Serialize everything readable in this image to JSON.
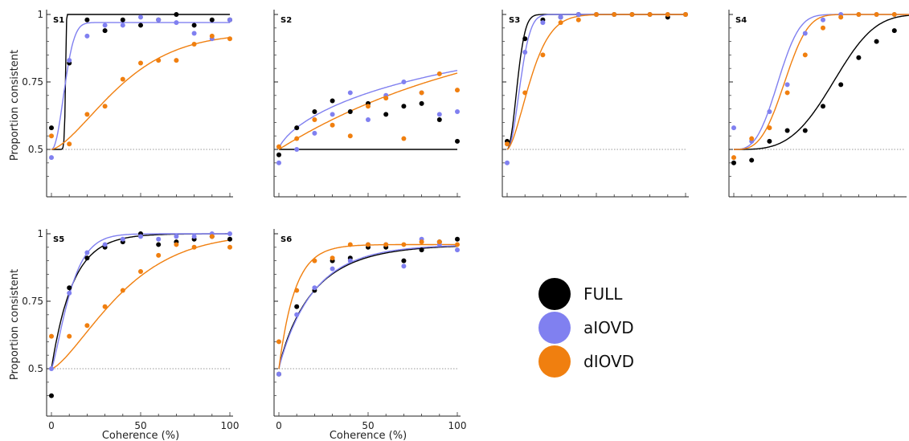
{
  "figure": {
    "ylabel": "Proportion consistent",
    "xlabel": "Coherence (%)",
    "legend": [
      {
        "label": "FULL",
        "color": "#000000"
      },
      {
        "label": "aIOVD",
        "color": "#8080f0"
      },
      {
        "label": "dIOVD",
        "color": "#f07f0f"
      }
    ]
  },
  "chart_data": [
    {
      "type": "scatter",
      "title": "S1",
      "x": [
        0,
        10,
        20,
        30,
        40,
        50,
        60,
        70,
        80,
        90,
        100
      ],
      "xlim": [
        0,
        100
      ],
      "ylim": [
        0.35,
        1
      ],
      "yticks": [
        0.5,
        0.75,
        1
      ],
      "yticklabels": [
        "0.5",
        "0.75",
        "1"
      ],
      "xticks": [
        0,
        50,
        100
      ],
      "series": [
        {
          "name": "FULL",
          "color": "#000000",
          "values": [
            0.58,
            0.82,
            0.98,
            0.94,
            0.98,
            0.96,
            0.98,
            1.0,
            0.96,
            0.98,
            0.98
          ],
          "fit": {
            "type": "weibull",
            "alpha": 8,
            "beta": 20
          }
        },
        {
          "name": "aIOVD",
          "color": "#8080f0",
          "values": [
            0.47,
            0.83,
            0.92,
            0.96,
            0.96,
            0.99,
            0.98,
            0.97,
            0.93,
            0.91,
            0.98
          ],
          "fit": {
            "type": "weibull",
            "alpha": 9,
            "beta": 2.1,
            "ymax": 0.97
          }
        },
        {
          "name": "dIOVD",
          "color": "#f07f0f",
          "values": [
            0.55,
            0.52,
            0.63,
            0.66,
            0.76,
            0.82,
            0.83,
            0.83,
            0.89,
            0.92,
            0.91
          ],
          "fit": {
            "type": "weibull",
            "alpha": 45,
            "beta": 1.5,
            "ymax": 0.93
          }
        }
      ]
    },
    {
      "type": "scatter",
      "title": "S2",
      "x": [
        0,
        10,
        20,
        30,
        40,
        50,
        60,
        70,
        80,
        90,
        100
      ],
      "xlim": [
        0,
        100
      ],
      "ylim": [
        0.35,
        1
      ],
      "yticks": [
        0.5,
        0.75,
        1
      ],
      "yticklabels": [],
      "xticks": [
        0,
        50,
        100
      ],
      "series": [
        {
          "name": "FULL",
          "color": "#000000",
          "values": [
            0.48,
            0.58,
            0.64,
            0.68,
            0.64,
            0.67,
            0.63,
            0.66,
            0.67,
            0.61,
            0.53
          ],
          "fit": {
            "type": "flat",
            "y": 0.5
          }
        },
        {
          "name": "aIOVD",
          "color": "#8080f0",
          "values": [
            0.45,
            0.5,
            0.56,
            0.63,
            0.71,
            0.61,
            0.7,
            0.75,
            0.71,
            0.63,
            0.64
          ],
          "fit": {
            "type": "weibull",
            "alpha": 120,
            "beta": 0.7
          }
        },
        {
          "name": "dIOVD",
          "color": "#f07f0f",
          "values": [
            0.51,
            0.54,
            0.61,
            0.59,
            0.55,
            0.66,
            0.69,
            0.54,
            0.71,
            0.78,
            0.72
          ],
          "fit": {
            "type": "weibull",
            "alpha": 120,
            "beta": 1.0
          }
        }
      ]
    },
    {
      "type": "scatter",
      "title": "S3",
      "x": [
        0,
        10,
        20,
        30,
        40,
        50,
        60,
        70,
        80,
        90,
        100
      ],
      "xlim": [
        0,
        100
      ],
      "ylim": [
        0.35,
        1
      ],
      "yticks": [
        0.5,
        0.75,
        1
      ],
      "yticklabels": [],
      "xticks": [
        0,
        50,
        100
      ],
      "series": [
        {
          "name": "FULL",
          "color": "#000000",
          "values": [
            0.53,
            0.91,
            0.98,
            0.99,
            1.0,
            1.0,
            1.0,
            1.0,
            1.0,
            0.99,
            1.0
          ],
          "fit": {
            "type": "weibull",
            "alpha": 7,
            "beta": 2.0
          }
        },
        {
          "name": "aIOVD",
          "color": "#8080f0",
          "values": [
            0.45,
            0.86,
            0.97,
            0.99,
            1.0,
            1.0,
            1.0,
            1.0,
            1.0,
            1.0,
            1.0
          ],
          "fit": {
            "type": "weibull",
            "alpha": 9,
            "beta": 2.0
          }
        },
        {
          "name": "dIOVD",
          "color": "#f07f0f",
          "values": [
            0.52,
            0.71,
            0.85,
            0.97,
            0.98,
            1.0,
            1.0,
            1.0,
            1.0,
            1.0,
            1.0
          ],
          "fit": {
            "type": "weibull",
            "alpha": 16,
            "beta": 1.6
          }
        }
      ]
    },
    {
      "type": "scatter",
      "title": "S4",
      "x": [
        0,
        10,
        20,
        30,
        40,
        50,
        60,
        70,
        80,
        90,
        100
      ],
      "xlim": [
        0,
        100
      ],
      "ylim": [
        0.35,
        1
      ],
      "yticks": [
        0.5,
        0.75,
        1
      ],
      "yticklabels": [],
      "xticks": [
        0,
        50,
        100
      ],
      "series": [
        {
          "name": "FULL",
          "color": "#000000",
          "values": [
            0.45,
            0.46,
            0.53,
            0.57,
            0.57,
            0.66,
            0.74,
            0.84,
            0.9,
            0.94,
            0.99
          ],
          "fit": {
            "type": "weibull",
            "alpha": 62,
            "beta": 3.5
          }
        },
        {
          "name": "aIOVD",
          "color": "#8080f0",
          "values": [
            0.58,
            0.53,
            0.64,
            0.74,
            0.93,
            0.98,
            1.0,
            1.0,
            1.0,
            1.0,
            1.0
          ],
          "fit": {
            "type": "weibull",
            "alpha": 28,
            "beta": 3.0
          }
        },
        {
          "name": "dIOVD",
          "color": "#f07f0f",
          "values": [
            0.47,
            0.54,
            0.58,
            0.71,
            0.85,
            0.95,
            0.99,
            1.0,
            1.0,
            1.0,
            1.0
          ],
          "fit": {
            "type": "weibull",
            "alpha": 32,
            "beta": 3.2
          }
        }
      ]
    },
    {
      "type": "scatter",
      "title": "S5",
      "x": [
        0,
        10,
        20,
        30,
        40,
        50,
        60,
        70,
        80,
        90,
        100
      ],
      "xlim": [
        0,
        100
      ],
      "ylim": [
        0.35,
        1
      ],
      "yticks": [
        0.5,
        0.75,
        1
      ],
      "yticklabels": [
        "0.5",
        "0.75",
        "1"
      ],
      "xticks": [
        0,
        50,
        100
      ],
      "xticklabels": [
        "0",
        "50",
        "100"
      ],
      "series": [
        {
          "name": "FULL",
          "color": "#000000",
          "values": [
            0.4,
            0.8,
            0.91,
            0.95,
            0.97,
            1.0,
            0.96,
            0.97,
            0.98,
            0.99,
            0.98
          ],
          "fit": {
            "type": "weibull",
            "alpha": 12,
            "beta": 1.0
          }
        },
        {
          "name": "aIOVD",
          "color": "#8080f0",
          "values": [
            0.5,
            0.78,
            0.93,
            0.96,
            0.98,
            0.99,
            0.98,
            0.99,
            0.99,
            1.0,
            1.0
          ],
          "fit": {
            "type": "weibull",
            "alpha": 12,
            "beta": 1.3
          }
        },
        {
          "name": "dIOVD",
          "color": "#f07f0f",
          "values": [
            0.62,
            0.62,
            0.66,
            0.73,
            0.79,
            0.86,
            0.92,
            0.96,
            0.95,
            0.99,
            0.95
          ],
          "fit": {
            "type": "weibull",
            "alpha": 45,
            "beta": 1.4
          }
        }
      ]
    },
    {
      "type": "scatter",
      "title": "S6",
      "x": [
        0,
        10,
        20,
        30,
        40,
        50,
        60,
        70,
        80,
        90,
        100
      ],
      "xlim": [
        0,
        100
      ],
      "ylim": [
        0.35,
        1
      ],
      "yticks": [
        0.5,
        0.75,
        1
      ],
      "yticklabels": [],
      "xticks": [
        0,
        50,
        100
      ],
      "xticklabels": [
        "0",
        "50",
        "100"
      ],
      "series": [
        {
          "name": "FULL",
          "color": "#000000",
          "values": [
            0.48,
            0.73,
            0.79,
            0.9,
            0.91,
            0.95,
            0.95,
            0.9,
            0.94,
            0.97,
            0.98
          ],
          "fit": {
            "type": "weibull",
            "alpha": 20,
            "beta": 0.9,
            "ymax": 0.96
          }
        },
        {
          "name": "aIOVD",
          "color": "#8080f0",
          "values": [
            0.48,
            0.7,
            0.8,
            0.87,
            0.9,
            0.96,
            0.96,
            0.88,
            0.98,
            0.96,
            0.94
          ],
          "fit": {
            "type": "weibull",
            "alpha": 20,
            "beta": 0.95,
            "ymax": 0.96
          }
        },
        {
          "name": "dIOVD",
          "color": "#f07f0f",
          "values": [
            0.6,
            0.79,
            0.9,
            0.91,
            0.96,
            0.96,
            0.96,
            0.96,
            0.97,
            0.97,
            0.96
          ],
          "fit": {
            "type": "weibull",
            "alpha": 9,
            "beta": 1.0,
            "ymax": 0.96
          }
        }
      ]
    }
  ]
}
